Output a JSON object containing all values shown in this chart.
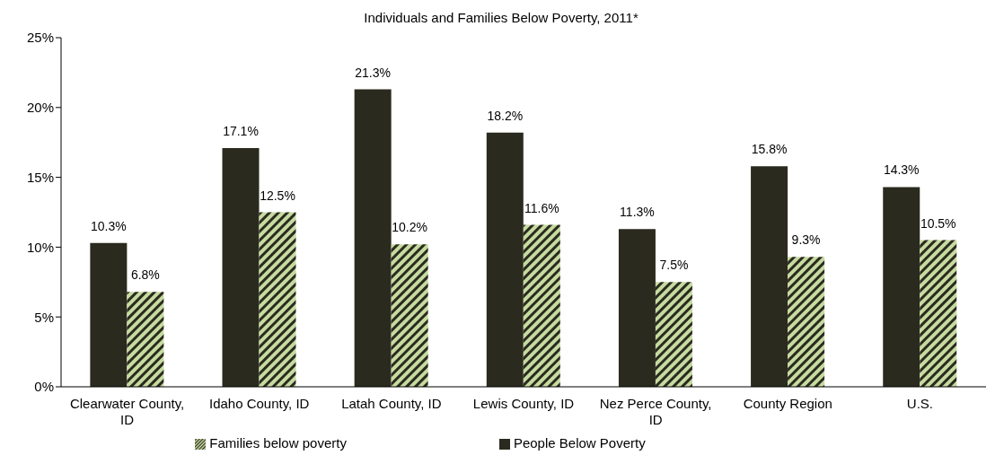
{
  "chart_data": {
    "type": "bar",
    "title": "Individuals and Families Below Poverty, 2011*",
    "categories": [
      "Clearwater County, ID",
      "Idaho County, ID",
      "Latah County, ID",
      "Lewis County, ID",
      "Nez Perce County, ID",
      "County Region",
      "U.S."
    ],
    "series": [
      {
        "name": "People Below Poverty",
        "color": "#2b2a1e",
        "values": [
          10.3,
          17.1,
          21.3,
          18.2,
          11.3,
          15.8,
          14.3
        ],
        "value_labels": [
          "10.3%",
          "17.1%",
          "21.3%",
          "18.2%",
          "11.3%",
          "15.8%",
          "14.3%"
        ]
      },
      {
        "name": "Families below poverty",
        "color": "#c6dba0",
        "values": [
          6.8,
          12.5,
          10.2,
          11.6,
          7.5,
          9.3,
          10.5
        ],
        "value_labels": [
          "6.8%",
          "12.5%",
          "10.2%",
          "11.6%",
          "7.5%",
          "9.3%",
          "10.5%"
        ]
      }
    ],
    "ylim": [
      0,
      25
    ],
    "yticks": [
      {
        "value": 0,
        "label": "0%"
      },
      {
        "value": 5,
        "label": "5%"
      },
      {
        "value": 10,
        "label": "10%"
      },
      {
        "value": 15,
        "label": "15%"
      },
      {
        "value": 20,
        "label": "20%"
      },
      {
        "value": 25,
        "label": "25%"
      }
    ],
    "grid": false,
    "legend": "bottom"
  }
}
